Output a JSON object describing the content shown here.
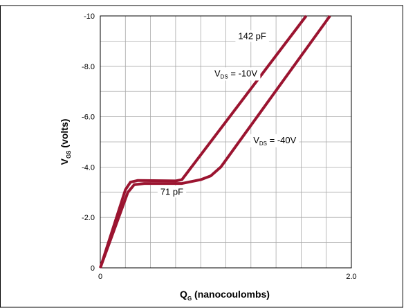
{
  "chart_data": {
    "type": "line",
    "xlabel": {
      "main": "Q",
      "sub": "G",
      "rest": " (nanocoulombs)"
    },
    "ylabel": {
      "main": "V",
      "sub": "GS",
      "rest": " (volts)"
    },
    "xlim": [
      0,
      2.0
    ],
    "ylim": [
      0,
      -10
    ],
    "x_ticks": [
      {
        "value": 0,
        "label": "0"
      },
      {
        "value": 2.0,
        "label": "2.0"
      }
    ],
    "y_ticks": [
      {
        "value": 0,
        "label": "0"
      },
      {
        "value": -2,
        "label": "-2.0"
      },
      {
        "value": -4,
        "label": "-4.0"
      },
      {
        "value": -6,
        "label": "-6.0"
      },
      {
        "value": -8,
        "label": "-8.0"
      },
      {
        "value": -10,
        "label": "-10"
      }
    ],
    "grid": true,
    "grid_x_divisions": 10,
    "grid_y_divisions": 10,
    "series_color": "#9b1430",
    "series": [
      {
        "points": [
          [
            0,
            0
          ],
          [
            0.2,
            -3.1
          ],
          [
            0.24,
            -3.4
          ],
          [
            0.3,
            -3.47
          ],
          [
            0.6,
            -3.45
          ],
          [
            0.65,
            -3.5
          ],
          [
            1.64,
            -10.0
          ]
        ]
      },
      {
        "points": [
          [
            0,
            0
          ],
          [
            0.22,
            -3.0
          ],
          [
            0.27,
            -3.3
          ],
          [
            0.35,
            -3.35
          ],
          [
            0.65,
            -3.35
          ],
          [
            0.8,
            -3.5
          ],
          [
            0.88,
            -3.65
          ],
          [
            0.96,
            -4.0
          ],
          [
            1.83,
            -10.0
          ]
        ]
      }
    ],
    "annotations": [
      {
        "parts": [
          {
            "t": "142 pF"
          }
        ],
        "x": 1.21,
        "y": -9.08
      },
      {
        "parts": [
          {
            "t": "V"
          },
          {
            "t": "DS",
            "sub": true
          },
          {
            "t": " = -10V"
          }
        ],
        "x": 1.08,
        "y": -7.6
      },
      {
        "parts": [
          {
            "t": "V"
          },
          {
            "t": "DS",
            "sub": true
          },
          {
            "t": " = -40V"
          }
        ],
        "x": 1.39,
        "y": -4.95
      },
      {
        "parts": [
          {
            "t": "71 pF"
          }
        ],
        "x": 0.57,
        "y": -2.9
      }
    ]
  }
}
